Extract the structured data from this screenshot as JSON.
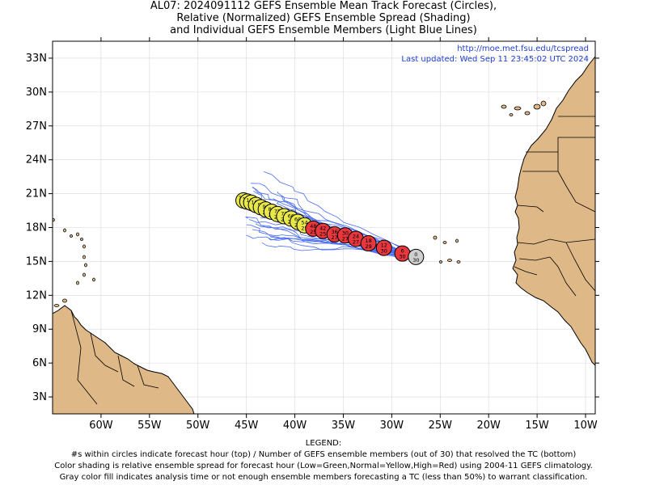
{
  "title": {
    "line1": "AL07: 2024091112 GEFS Ensemble Mean Track Forecast (Circles),",
    "line2": "Relative (Normalized) GEFS Ensemble Spread (Shading)",
    "line3": "and Individual GEFS Ensemble Members (Light Blue Lines)"
  },
  "credit": {
    "url": "http://moe.met.fsu.edu/tcspread",
    "updated": "Last updated: Wed Sep 11 23:45:02 UTC 2024"
  },
  "axes": {
    "lat_ticks": [
      "3N",
      "6N",
      "9N",
      "12N",
      "15N",
      "18N",
      "21N",
      "24N",
      "27N",
      "30N",
      "33N"
    ],
    "lon_ticks": [
      "60W",
      "55W",
      "50W",
      "45W",
      "40W",
      "35W",
      "30W",
      "25W",
      "20W",
      "15W",
      "10W"
    ]
  },
  "colors": {
    "land": "#deb887",
    "ocean": "#ffffff",
    "member_line": "#4a6cf0",
    "low_spread": "#3cb043",
    "normal_spread": "#e8e84a",
    "high_spread": "#e8373d",
    "analysis": "#cfcfcf"
  },
  "chart_data": {
    "type": "map",
    "storm": "AL07",
    "init": "2024091112",
    "lon_range": [
      -65,
      -9
    ],
    "lat_range": [
      1.5,
      34.5
    ],
    "mean_track": [
      {
        "lon": -27.5,
        "lat": 15.4,
        "hour": "0",
        "members": "30",
        "spread": "analysis"
      },
      {
        "lon": -28.9,
        "lat": 15.7,
        "hour": "6",
        "members": "30",
        "spread": "high"
      },
      {
        "lon": -30.8,
        "lat": 16.2,
        "hour": "12",
        "members": "30",
        "spread": "high"
      },
      {
        "lon": -32.4,
        "lat": 16.6,
        "hour": "18",
        "members": "29",
        "spread": "high"
      },
      {
        "lon": -33.7,
        "lat": 17.0,
        "hour": "24",
        "members": "27",
        "spread": "high"
      },
      {
        "lon": -34.8,
        "lat": 17.3,
        "hour": "30",
        "members": "27",
        "spread": "high"
      },
      {
        "lon": -35.9,
        "lat": 17.4,
        "hour": "36",
        "members": "27",
        "spread": "high"
      },
      {
        "lon": -37.1,
        "lat": 17.7,
        "hour": "42",
        "members": "25",
        "spread": "high"
      },
      {
        "lon": -38.1,
        "lat": 17.9,
        "hour": "48",
        "members": "25",
        "spread": "high"
      },
      {
        "lon": -39.0,
        "lat": 18.2,
        "hour": "54",
        "members": "25",
        "spread": "normal"
      },
      {
        "lon": -39.7,
        "lat": 18.5,
        "hour": "60",
        "members": "25",
        "spread": "normal"
      },
      {
        "lon": -40.4,
        "lat": 18.8,
        "hour": "66",
        "members": "25",
        "spread": "normal"
      },
      {
        "lon": -41.1,
        "lat": 19.0,
        "hour": "72",
        "members": "25",
        "spread": "normal"
      },
      {
        "lon": -41.8,
        "lat": 19.2,
        "hour": "78",
        "members": "25",
        "spread": "normal"
      },
      {
        "lon": -42.4,
        "lat": 19.4,
        "hour": "84",
        "members": "25",
        "spread": "normal"
      },
      {
        "lon": -43.0,
        "lat": 19.6,
        "hour": "90",
        "members": "25",
        "spread": "normal"
      },
      {
        "lon": -43.5,
        "lat": 19.8,
        "hour": "96",
        "members": "25",
        "spread": "normal"
      },
      {
        "lon": -44.0,
        "lat": 20.0,
        "hour": "102",
        "members": "25",
        "spread": "normal"
      },
      {
        "lon": -44.5,
        "lat": 20.2,
        "hour": "108",
        "members": "25",
        "spread": "normal"
      },
      {
        "lon": -44.9,
        "lat": 20.3,
        "hour": "114",
        "members": "25",
        "spread": "normal"
      },
      {
        "lon": -45.3,
        "lat": 20.4,
        "hour": "120",
        "members": "23",
        "spread": "normal"
      }
    ]
  },
  "legend": {
    "heading": "LEGEND:",
    "line1": "#s within circles indicate forecast hour (top) / Number of GEFS ensemble members (out of 30) that resolved the TC (bottom)",
    "line2": "Color shading is relative ensemble spread for forecast hour (Low=Green,Normal=Yellow,High=Red) using 2004-11 GEFS climatology.",
    "line3": "Gray color fill indicates analysis time or not enough ensemble members forecasting a TC (less than 50%) to warrant classification."
  }
}
